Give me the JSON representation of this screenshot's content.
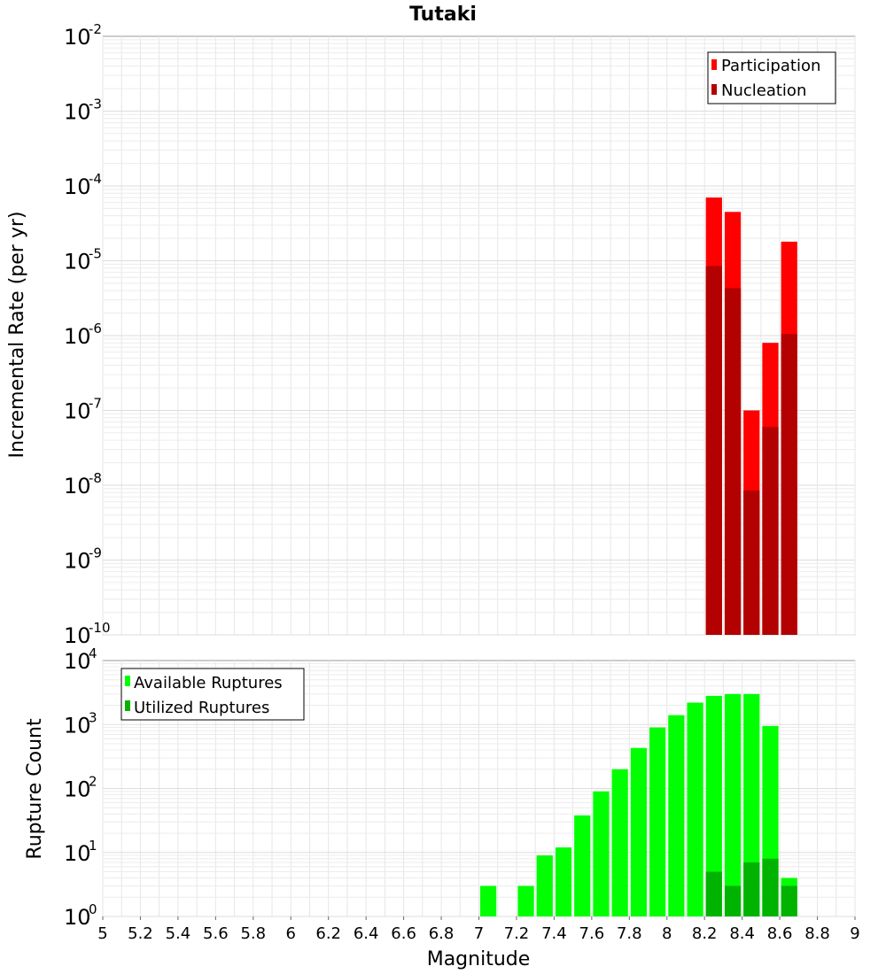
{
  "chart_data": [
    {
      "type": "bar",
      "title": "Tutaki",
      "ylabel": "Incremental Rate (per yr)",
      "xlabel": "",
      "y_scale": "log",
      "ylim": [
        1e-10,
        0.01
      ],
      "xlim": [
        5,
        9
      ],
      "bar_width": 0.1,
      "grid": true,
      "legend_position": "top-right",
      "series": [
        {
          "name": "Participation",
          "color": "#ff0000",
          "x": [
            8.25,
            8.35,
            8.45,
            8.55,
            8.65
          ],
          "values": [
            7e-05,
            4.5e-05,
            1e-07,
            8e-07,
            1.8e-05
          ]
        },
        {
          "name": "Nucleation",
          "color": "#b30000",
          "x": [
            8.25,
            8.35,
            8.45,
            8.55,
            8.65
          ],
          "values": [
            8.5e-06,
            4.3e-06,
            8.5e-09,
            6e-08,
            1.05e-06
          ]
        }
      ]
    },
    {
      "type": "bar",
      "title": "",
      "ylabel": "Rupture Count",
      "xlabel": "Magnitude",
      "y_scale": "log",
      "ylim": [
        1,
        10000
      ],
      "xlim": [
        5,
        9
      ],
      "bar_width": 0.1,
      "grid": true,
      "legend_position": "top-left",
      "x_ticks": [
        "5",
        "5.2",
        "5.4",
        "5.6",
        "5.8",
        "6",
        "6.2",
        "6.4",
        "6.6",
        "6.8",
        "7",
        "7.2",
        "7.4",
        "7.6",
        "7.8",
        "8",
        "8.2",
        "8.4",
        "8.6",
        "8.8",
        "9"
      ],
      "series": [
        {
          "name": "Available Ruptures",
          "color": "#00ff00",
          "x": [
            7.05,
            7.25,
            7.35,
            7.45,
            7.55,
            7.65,
            7.75,
            7.85,
            7.95,
            8.05,
            8.15,
            8.25,
            8.35,
            8.45,
            8.55,
            8.65
          ],
          "values": [
            3,
            3,
            9,
            12,
            38,
            90,
            200,
            430,
            900,
            1400,
            2200,
            2800,
            3000,
            3000,
            950,
            4
          ]
        },
        {
          "name": "Utilized Ruptures",
          "color": "#00b300",
          "x": [
            8.25,
            8.35,
            8.45,
            8.55,
            8.65
          ],
          "values": [
            5,
            3,
            7,
            8,
            3
          ]
        }
      ]
    }
  ]
}
